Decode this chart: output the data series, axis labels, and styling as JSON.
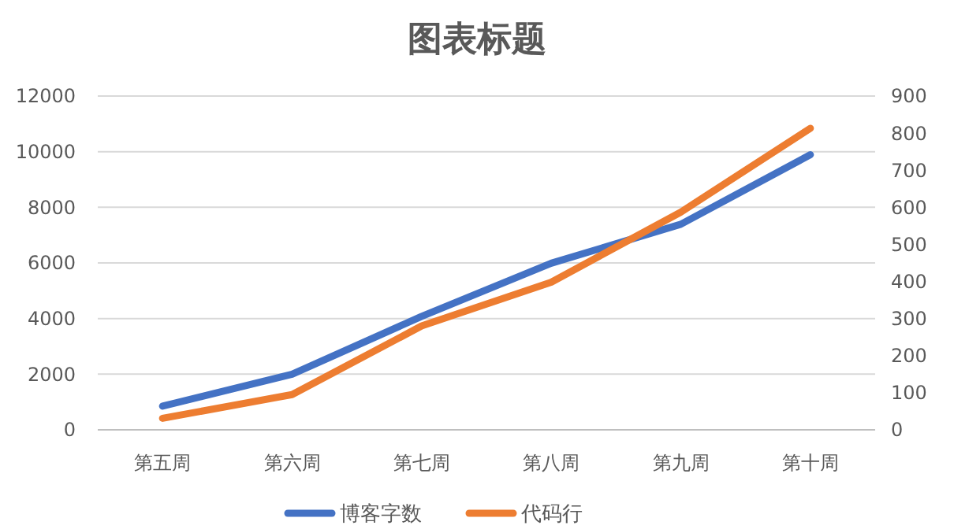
{
  "chart_data": {
    "type": "line",
    "title": "图表标题",
    "categories": [
      "第五周",
      "第六周",
      "第七周",
      "第八周",
      "第九周",
      "第十周"
    ],
    "series": [
      {
        "name": "博客字数",
        "color": "#4472c4",
        "values": [
          850,
          2000,
          4080,
          5990,
          7390,
          9890
        ]
      },
      {
        "name": "代码行",
        "color": "#ed7d31",
        "values": [
          31,
          95,
          280,
          398,
          587,
          813
        ],
        "axis": "y2"
      }
    ],
    "ylim": [
      0,
      12000
    ],
    "yticks": [
      0,
      2000,
      4000,
      6000,
      8000,
      10000,
      12000
    ],
    "y2lim": [
      0,
      900
    ],
    "y2ticks": [
      0,
      100,
      200,
      300,
      400,
      500,
      600,
      700,
      800,
      900
    ],
    "grid": "y",
    "legend": "bottom",
    "marker": "none",
    "line_style": "solid"
  }
}
